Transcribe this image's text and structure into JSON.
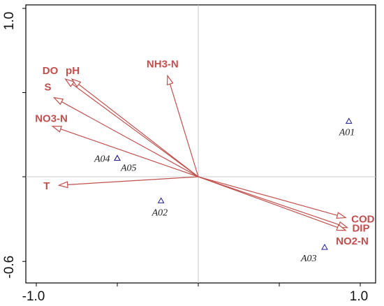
{
  "chart_data": {
    "type": "scatter",
    "subtype": "rda-biplot",
    "xlim": [
      -1.0,
      1.0
    ],
    "ylim": [
      -0.6,
      1.0
    ],
    "x_tick_labels": [
      "-1.0",
      "1.0"
    ],
    "y_tick_labels": [
      "-0.6",
      "1.0"
    ],
    "reference_lines": {
      "x": 0,
      "y": 0
    },
    "grid": false,
    "colors": {
      "vectors": "#c0504d",
      "sites": "#1f1f8f",
      "reference": "#c8c8c8",
      "frame": "#000000"
    },
    "environment_vectors": [
      {
        "label": "DO",
        "x": -0.82,
        "y": 0.58
      },
      {
        "label": "pH",
        "x": -0.78,
        "y": 0.58
      },
      {
        "label": "S",
        "x": -0.89,
        "y": 0.47
      },
      {
        "label": "NO3-N",
        "x": -0.9,
        "y": 0.3
      },
      {
        "label": "NH3-N",
        "x": -0.19,
        "y": 0.6
      },
      {
        "label": "T",
        "x": -0.86,
        "y": -0.06
      },
      {
        "label": "COD",
        "x": 0.91,
        "y": -0.29
      },
      {
        "label": "DIP",
        "x": 0.92,
        "y": -0.36
      },
      {
        "label": "NO2-N",
        "x": 0.91,
        "y": -0.38
      }
    ],
    "sites": [
      {
        "label": "A01",
        "x": 0.93,
        "y": 0.33
      },
      {
        "label": "A02",
        "x": -0.23,
        "y": -0.17
      },
      {
        "label": "A03",
        "x": 0.78,
        "y": -0.5
      },
      {
        "label": "A04",
        "x": -0.5,
        "y": 0.11
      },
      {
        "label": "A05",
        "x": -0.5,
        "y": 0.11
      }
    ]
  }
}
